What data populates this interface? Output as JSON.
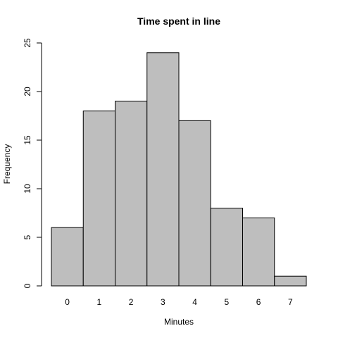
{
  "chart_data": {
    "type": "bar",
    "title": "Time spent in line",
    "x_label": "Minutes",
    "y_label": "Frequency",
    "categories": [
      "0",
      "1",
      "2",
      "3",
      "4",
      "5",
      "6",
      "7"
    ],
    "values": [
      6,
      18,
      19,
      24,
      17,
      8,
      7,
      1
    ],
    "color": "#bebebe",
    "ylim": [
      0,
      25
    ],
    "yticks": [
      0,
      5,
      10,
      15,
      20,
      25
    ]
  }
}
